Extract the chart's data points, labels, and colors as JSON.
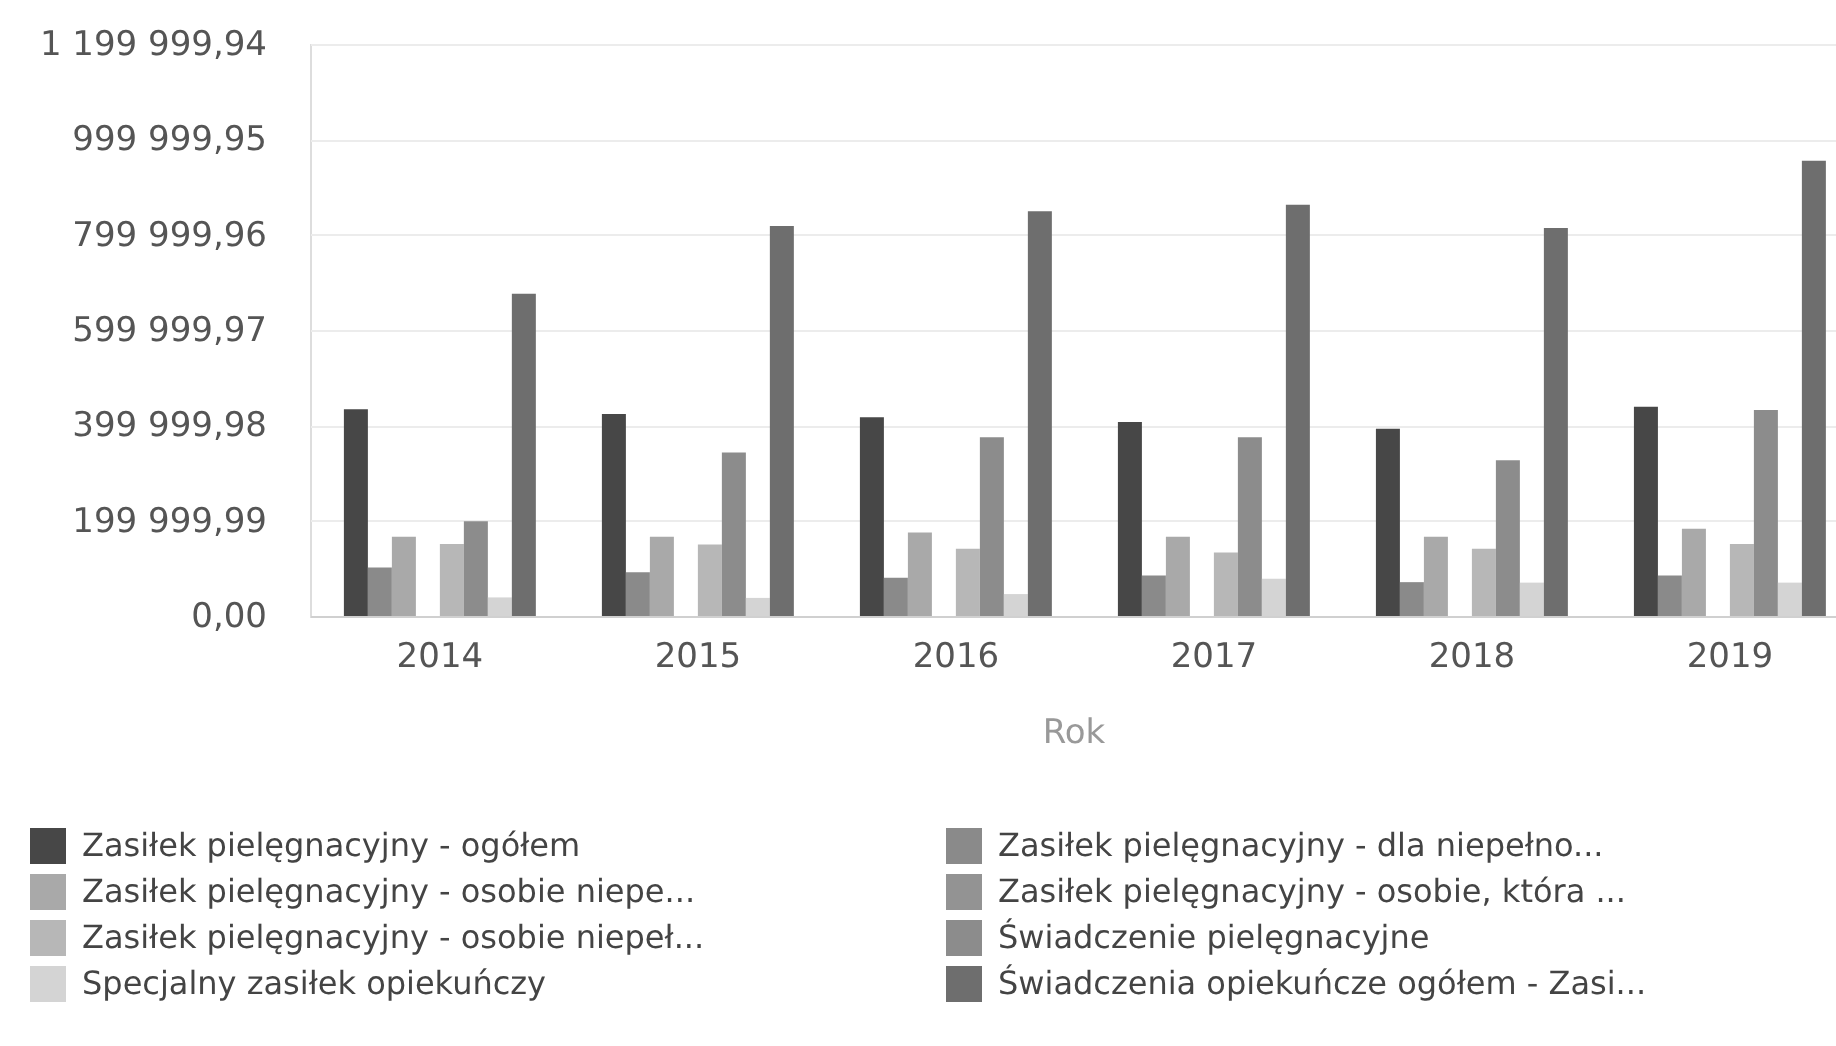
{
  "chart_data": {
    "type": "bar",
    "xlabel": "Rok",
    "categories": [
      "2014",
      "2015",
      "2016",
      "2017",
      "2018",
      "2019"
    ],
    "series": [
      {
        "name": "Zasiłek pielęgnacyjny - ogółem",
        "color": "#474747",
        "values": [
          434000,
          424000,
          417000,
          407000,
          393000,
          439000
        ]
      },
      {
        "name": "Zasiłek pielęgnacyjny - dla niepełno...",
        "color": "#8a8a8a",
        "values": [
          102000,
          92000,
          80000,
          85000,
          71000,
          85000
        ]
      },
      {
        "name": "Zasiłek pielęgnacyjny - osobie niepe...",
        "color": "#a9a9a9",
        "values": [
          166000,
          166000,
          175000,
          166000,
          166000,
          183000
        ]
      },
      {
        "name": "Zasiłek pielęgnacyjny - osobie, która ...",
        "color": "#939393",
        "values": [
          null,
          null,
          null,
          null,
          null,
          null
        ]
      },
      {
        "name": "Zasiłek pielęgnacyjny -  osobie niepeł...",
        "color": "#b7b7b7",
        "values": [
          151000,
          150000,
          141000,
          133000,
          141000,
          151000
        ]
      },
      {
        "name": "Świadczenie pielęgnacyjne",
        "color": "#8c8c8c",
        "values": [
          199000,
          343000,
          375000,
          375000,
          327000,
          432000
        ]
      },
      {
        "name": "Specjalny zasiłek opiekuńczy",
        "color": "#d4d4d4",
        "values": [
          39000,
          38000,
          46000,
          78000,
          70000,
          70000
        ]
      },
      {
        "name": "Świadczenia opiekuńcze ogółem - Zasi...",
        "color": "#6e6e6e",
        "values": [
          676000,
          818000,
          849000,
          863000,
          814000,
          955000
        ]
      }
    ],
    "ylim": [
      0,
      1199999.94
    ],
    "yticks": [
      {
        "value": 0,
        "label": "0,00"
      },
      {
        "value": 199999.99,
        "label": "199 999,99"
      },
      {
        "value": 399999.98,
        "label": "399 999,98"
      },
      {
        "value": 599999.97,
        "label": "599 999,97"
      },
      {
        "value": 799999.96,
        "label": "799 999,96"
      },
      {
        "value": 999999.95,
        "label": "999 999,95"
      },
      {
        "value": 1199999.94,
        "label": "1 199 999,94"
      }
    ],
    "grid": "y",
    "legend": "bottom"
  }
}
